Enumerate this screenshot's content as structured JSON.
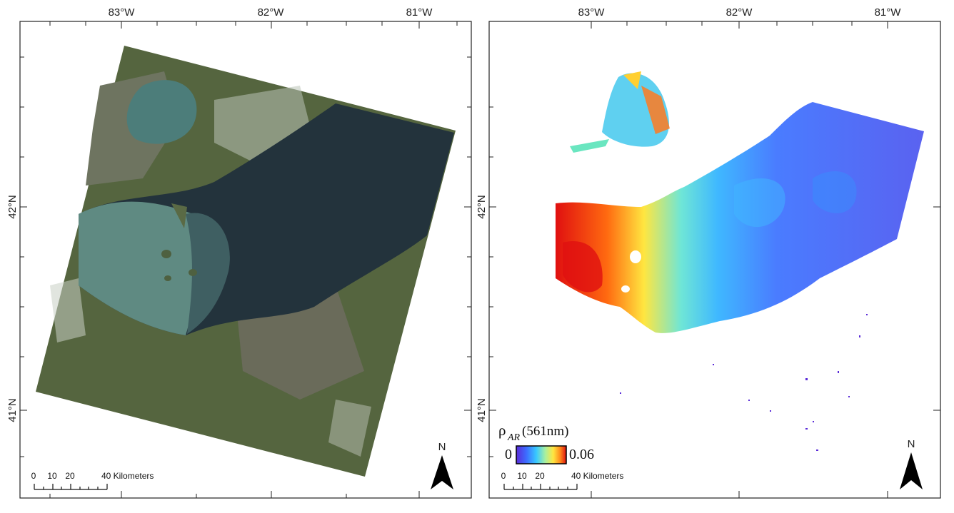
{
  "longitude_labels": [
    "83°W",
    "82°W",
    "81°W"
  ],
  "latitude_labels": [
    "42°N",
    "41°N"
  ],
  "north_arrow": {
    "label": "N",
    "icon": "north-arrow-icon"
  },
  "scale_bar": {
    "ticks": [
      "0",
      "10",
      "20",
      "40 Kilometers"
    ]
  },
  "left_map": {
    "content": "true-color satellite image of Lake Erie (western basin)"
  },
  "right_map": {
    "content": "remote-sensing reflectance map of Lake Erie",
    "legend": {
      "symbol": "ρ",
      "subscript": "AR",
      "wavelength": "(561nm)",
      "min": "0",
      "max": "0.06",
      "colors": [
        "#5a2bd8",
        "#3d6cff",
        "#38c8ff",
        "#a8f0a0",
        "#ffe640",
        "#ff8a1a",
        "#e01010"
      ]
    }
  }
}
